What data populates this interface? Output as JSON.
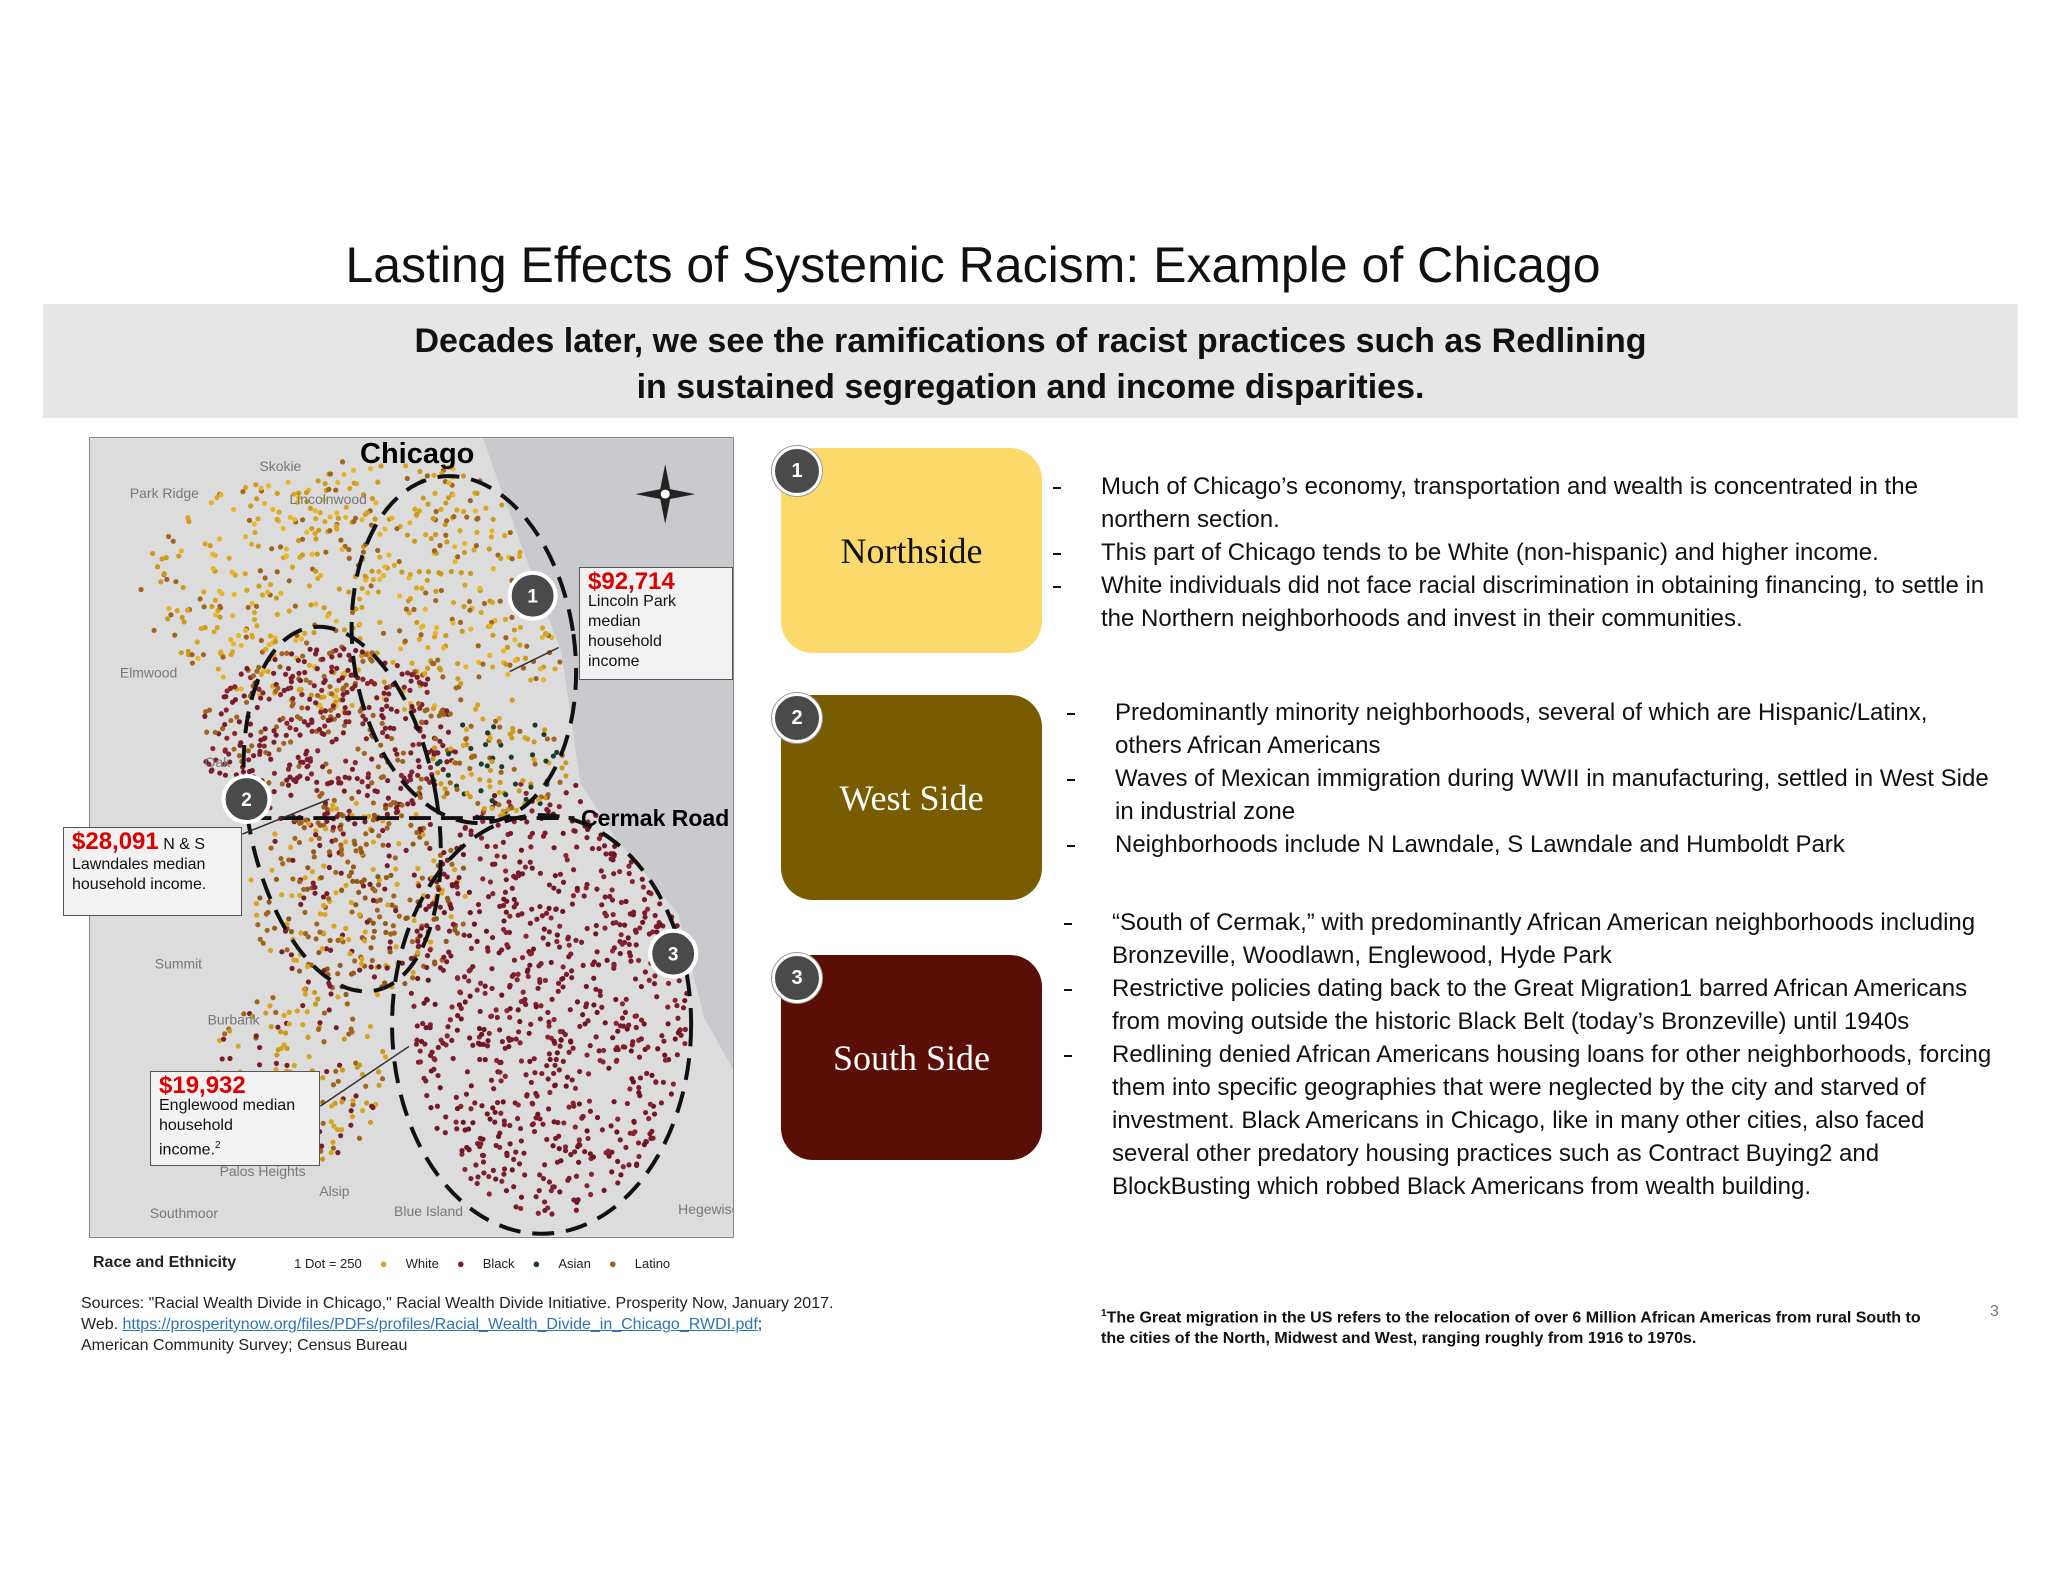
{
  "header": {
    "title": "Lasting Effects of Systemic Racism: Example of Chicago",
    "subtitle_lines": [
      "Decades later, we see the ramifications of racist practices such as Redlining",
      "in sustained segregation and income disparities."
    ]
  },
  "map": {
    "title": "Chicago",
    "road": "Cermak Road",
    "places": [
      "Skokie",
      "Park Ridge",
      "Lincolnwood",
      "Elmwood",
      "Oak",
      "Summit",
      "Burbank",
      "Palos Heights",
      "Alsip",
      "Southmoor",
      "Blue Island",
      "Hegewisch"
    ],
    "markers": [
      "1",
      "2",
      "3"
    ],
    "callouts": [
      {
        "amount": "$92,714",
        "lines": [
          "Lincoln Park",
          "median",
          "household",
          "income"
        ]
      },
      {
        "amount": "$28,091",
        "suffix": "N & S",
        "lines": [
          "Lawndales median",
          "household income."
        ]
      },
      {
        "amount": "$19,932",
        "lines": [
          "Englewood median",
          "household",
          "income."
        ],
        "sup": "2"
      }
    ],
    "legend": {
      "title": "Race and Ethnicity",
      "scale": "1 Dot = 250",
      "items": [
        "White",
        "Black",
        "Asian",
        "Latino"
      ]
    }
  },
  "sections": [
    {
      "number": "1",
      "name": "Northside",
      "bullets": [
        "Much of Chicago’s economy, transportation and wealth is concentrated in the northern section.",
        "This part of Chicago tends to be White (non-hispanic) and higher income.",
        "White individuals did not face racial discrimination in obtaining financing, to settle in the Northern neighborhoods and invest in their communities."
      ]
    },
    {
      "number": "2",
      "name": "West Side",
      "bullets": [
        "Predominantly minority neighborhoods, several of which are Hispanic/Latinx, others African Americans",
        "Waves of Mexican immigration during WWII in manufacturing, settled in West Side in industrial zone",
        "Neighborhoods include N Lawndale, S Lawndale and Humboldt Park"
      ]
    },
    {
      "number": "3",
      "name": "South Side",
      "bullets": [
        "“South of Cermak,” with predominantly African American neighborhoods including Bronzeville, Woodlawn, Englewood, Hyde Park",
        "Restrictive policies dating back to the Great Migration1 barred African Americans from moving outside the historic Black Belt (today’s Bronzeville) until 1940s",
        "Redlining denied African Americans housing loans for other neighborhoods, forcing them into specific geographies that were neglected by the city and starved of investment. Black Americans in Chicago, like in many other cities, also faced several other predatory housing practices such as Contract Buying2 and BlockBusting which robbed Black Americans from wealth building."
      ]
    }
  ],
  "footnote": {
    "mark": "1",
    "text": "The Great migration in the US refers to the relocation of over 6 Million African Americas from rural South to the cities of the North, Midwest and West, ranging roughly from 1916 to 1970s."
  },
  "sources": {
    "line1": "Sources: \"Racial Wealth Divide in Chicago,\" Racial Wealth Divide Initiative. Prosperity Now, January 2017.",
    "web": "Web.",
    "link": "https://prosperitynow.org/files/PDFs/profiles/Racial_Wealth_Divide_in_Chicago_RWDI.pdf",
    "after_link": ";",
    "line3": "American Community Survey; Census Bureau"
  },
  "page_number": "3"
}
